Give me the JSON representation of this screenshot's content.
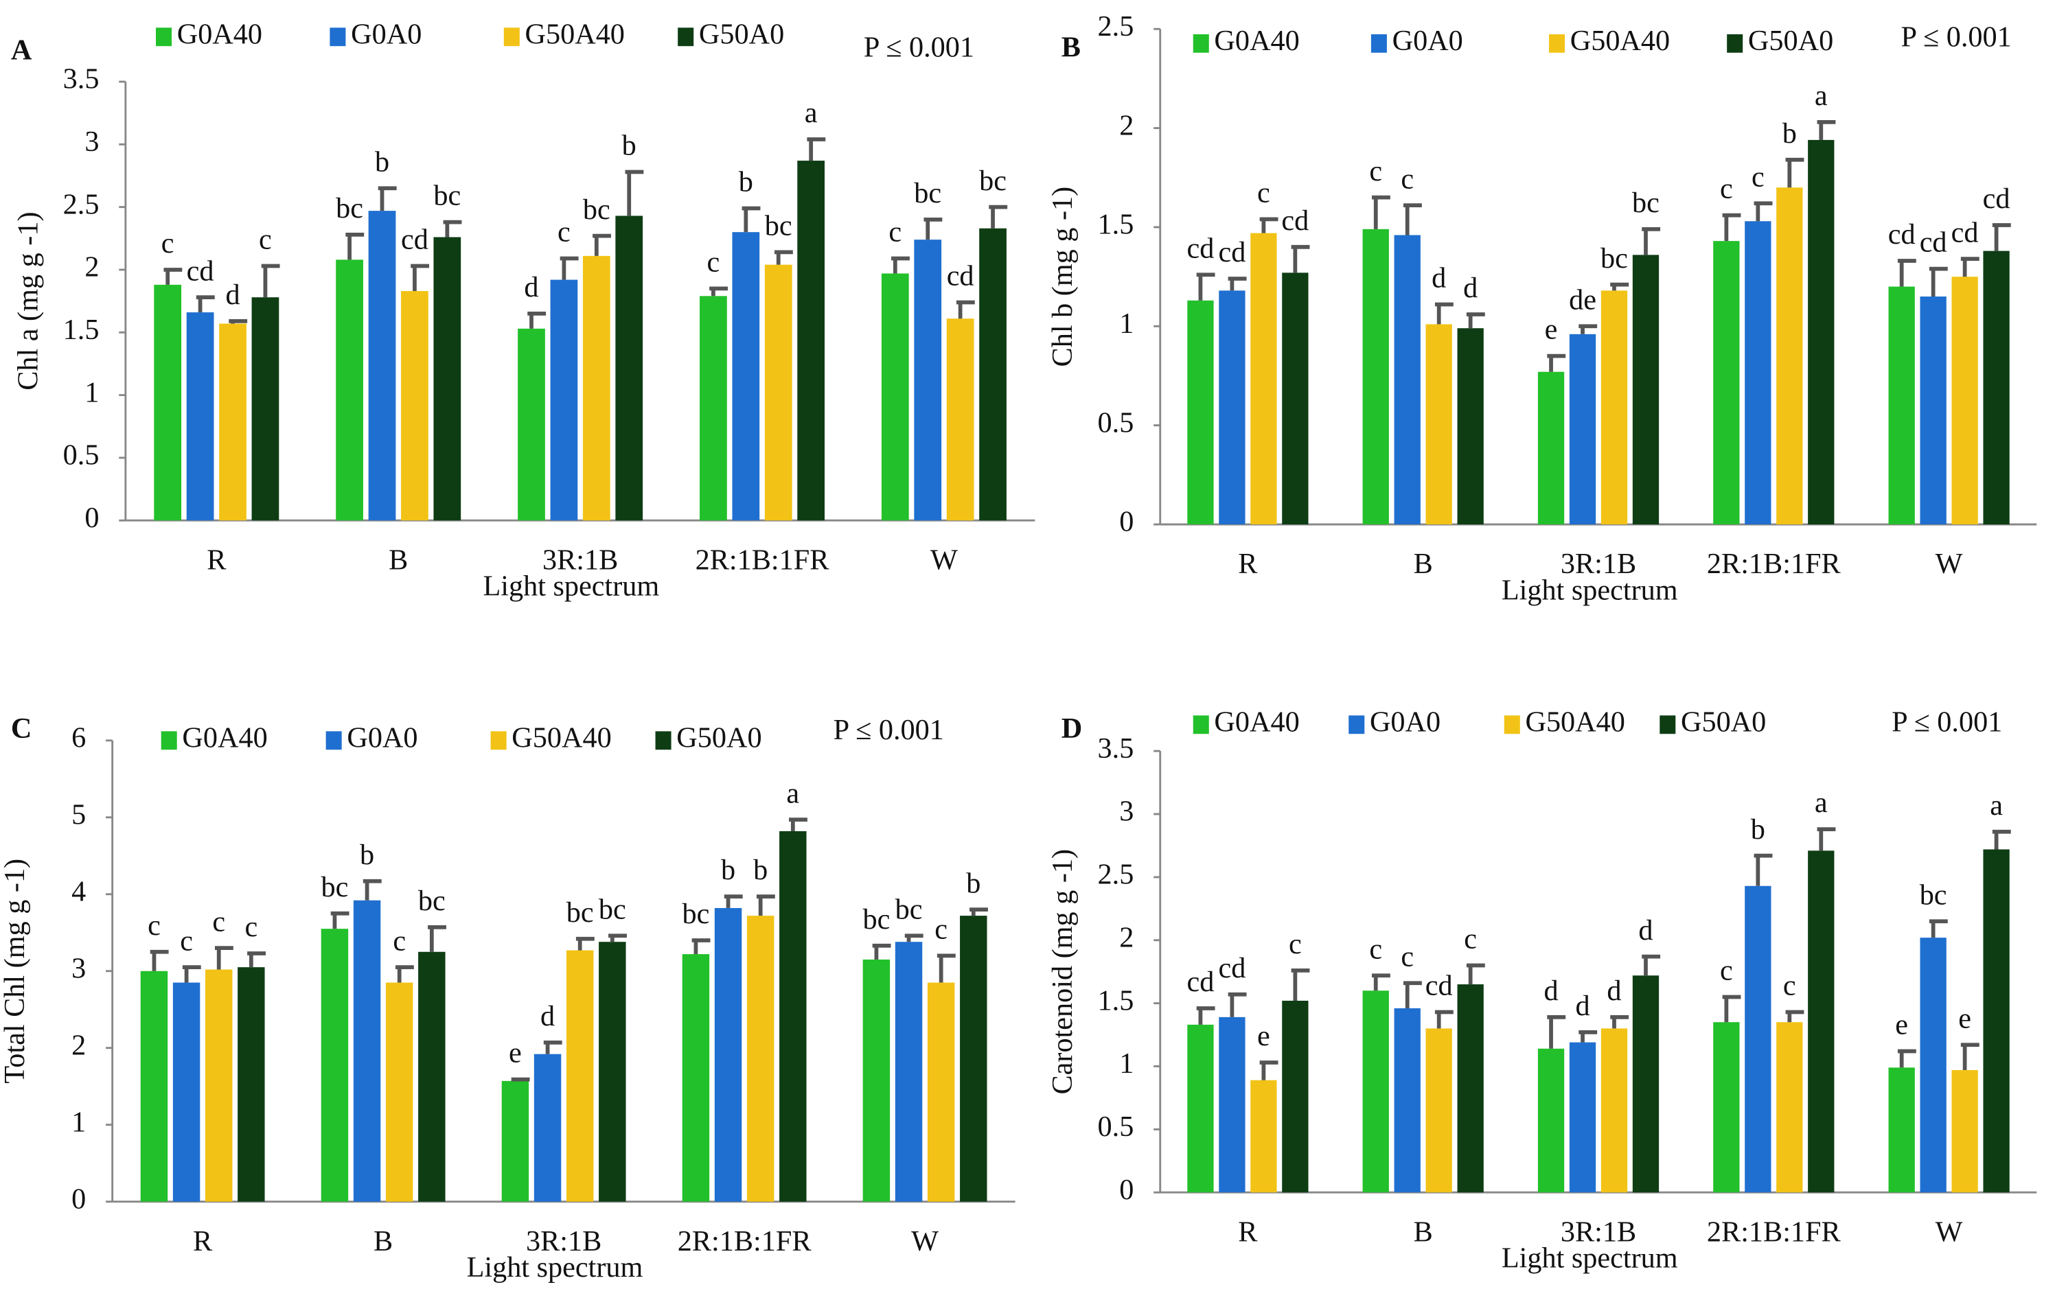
{
  "chart_data": [
    {
      "type": "bar",
      "panel": "A",
      "ylabel": "Chl a (mg g -1)",
      "xlabel": "Light spectrum",
      "note": "P ≤ 0.001",
      "categories": [
        "R",
        "B",
        "3R:1B",
        "2R:1B:1FR",
        "W"
      ],
      "ylim": [
        0,
        3.5
      ],
      "yticks": [
        0,
        0.5,
        1,
        1.5,
        2,
        2.5,
        3,
        3.5
      ],
      "series": [
        {
          "name": "G0A40",
          "color": "#22c02a",
          "values": [
            1.88,
            2.08,
            1.53,
            1.79,
            1.97
          ],
          "errors": [
            0.12,
            0.2,
            0.12,
            0.06,
            0.12
          ],
          "letters": [
            "c",
            "bc",
            "d",
            "c",
            "c"
          ]
        },
        {
          "name": "G0A0",
          "color": "#1f6fd0",
          "values": [
            1.66,
            2.47,
            1.92,
            2.3,
            2.24
          ],
          "errors": [
            0.12,
            0.18,
            0.17,
            0.19,
            0.16
          ],
          "letters": [
            "cd",
            "b",
            "c",
            "b",
            "bc"
          ]
        },
        {
          "name": "G50A40",
          "color": "#f2c316",
          "values": [
            1.57,
            1.83,
            2.11,
            2.04,
            1.61
          ],
          "errors": [
            0.02,
            0.2,
            0.16,
            0.1,
            0.13
          ],
          "letters": [
            "d",
            "cd",
            "bc",
            "bc",
            "cd"
          ]
        },
        {
          "name": "G50A0",
          "color": "#0e3d14",
          "values": [
            1.78,
            2.26,
            2.43,
            2.87,
            2.33
          ],
          "errors": [
            0.25,
            0.12,
            0.35,
            0.17,
            0.17
          ],
          "letters": [
            "c",
            "bc",
            "b",
            "a",
            "bc"
          ]
        }
      ]
    },
    {
      "type": "bar",
      "panel": "B",
      "ylabel": "Chl b (mg g -1)",
      "xlabel": "Light spectrum",
      "note": "P ≤ 0.001",
      "categories": [
        "R",
        "B",
        "3R:1B",
        "2R:1B:1FR",
        "W"
      ],
      "ylim": [
        0,
        2.5
      ],
      "yticks": [
        0,
        0.5,
        1,
        1.5,
        2,
        2.5
      ],
      "series": [
        {
          "name": "G0A40",
          "color": "#22c02a",
          "values": [
            1.13,
            1.49,
            0.77,
            1.43,
            1.2
          ],
          "errors": [
            0.13,
            0.16,
            0.08,
            0.13,
            0.13
          ],
          "letters": [
            "cd",
            "c",
            "e",
            "c",
            "cd"
          ]
        },
        {
          "name": "G0A0",
          "color": "#1f6fd0",
          "values": [
            1.18,
            1.46,
            0.96,
            1.53,
            1.15
          ],
          "errors": [
            0.06,
            0.15,
            0.04,
            0.09,
            0.14
          ],
          "letters": [
            "cd",
            "c",
            "de",
            "c",
            "cd"
          ]
        },
        {
          "name": "G50A40",
          "color": "#f2c316",
          "values": [
            1.47,
            1.01,
            1.18,
            1.7,
            1.25
          ],
          "errors": [
            0.07,
            0.1,
            0.03,
            0.14,
            0.09
          ],
          "letters": [
            "c",
            "d",
            "bc",
            "b",
            "cd"
          ]
        },
        {
          "name": "G50A0",
          "color": "#0e3d14",
          "values": [
            1.27,
            0.99,
            1.36,
            1.94,
            1.38
          ],
          "errors": [
            0.13,
            0.07,
            0.13,
            0.09,
            0.13
          ],
          "letters": [
            "cd",
            "d",
            "bc",
            "a",
            "cd"
          ]
        }
      ]
    },
    {
      "type": "bar",
      "panel": "C",
      "ylabel": "Total Chl (mg g -1)",
      "xlabel": "Light spectrum",
      "note": "P ≤ 0.001",
      "categories": [
        "R",
        "B",
        "3R:1B",
        "2R:1B:1FR",
        "W"
      ],
      "ylim": [
        0,
        6
      ],
      "yticks": [
        0,
        1,
        2,
        3,
        4,
        5,
        6
      ],
      "series": [
        {
          "name": "G0A40",
          "color": "#22c02a",
          "values": [
            3.0,
            3.55,
            1.57,
            3.22,
            3.15
          ],
          "errors": [
            0.25,
            0.2,
            0.02,
            0.18,
            0.18
          ],
          "letters": [
            "c",
            "bc",
            "e",
            "bc",
            "bc"
          ]
        },
        {
          "name": "G0A0",
          "color": "#1f6fd0",
          "values": [
            2.85,
            3.92,
            1.92,
            3.82,
            3.38
          ],
          "errors": [
            0.2,
            0.25,
            0.15,
            0.15,
            0.08
          ],
          "letters": [
            "c",
            "b",
            "d",
            "b",
            "bc"
          ]
        },
        {
          "name": "G50A40",
          "color": "#f2c316",
          "values": [
            3.02,
            2.85,
            3.27,
            3.72,
            2.85
          ],
          "errors": [
            0.28,
            0.2,
            0.15,
            0.25,
            0.35
          ],
          "letters": [
            "c",
            "c",
            "bc",
            "b",
            "c"
          ]
        },
        {
          "name": "G50A0",
          "color": "#0e3d14",
          "values": [
            3.05,
            3.25,
            3.38,
            4.82,
            3.72
          ],
          "errors": [
            0.18,
            0.32,
            0.08,
            0.15,
            0.08
          ],
          "letters": [
            "c",
            "bc",
            "bc",
            "a",
            "b"
          ]
        }
      ]
    },
    {
      "type": "bar",
      "panel": "D",
      "ylabel": "Carotenoid (mg g -1)",
      "xlabel": "Light spectrum",
      "note": "P ≤ 0.001",
      "categories": [
        "R",
        "B",
        "3R:1B",
        "2R:1B:1FR",
        "W"
      ],
      "ylim": [
        0,
        3.5
      ],
      "yticks": [
        0,
        0.5,
        1,
        1.5,
        2,
        2.5,
        3,
        3.5
      ],
      "series": [
        {
          "name": "G0A40",
          "color": "#22c02a",
          "values": [
            1.33,
            1.6,
            1.14,
            1.35,
            0.99
          ],
          "errors": [
            0.13,
            0.12,
            0.25,
            0.2,
            0.13
          ],
          "letters": [
            "cd",
            "c",
            "d",
            "c",
            "e"
          ]
        },
        {
          "name": "G0A0",
          "color": "#1f6fd0",
          "values": [
            1.39,
            1.46,
            1.19,
            2.43,
            2.02
          ],
          "errors": [
            0.18,
            0.2,
            0.08,
            0.24,
            0.13
          ],
          "letters": [
            "cd",
            "c",
            "d",
            "b",
            "bc"
          ]
        },
        {
          "name": "G50A40",
          "color": "#f2c316",
          "values": [
            0.89,
            1.3,
            1.3,
            1.35,
            0.97
          ],
          "errors": [
            0.14,
            0.13,
            0.09,
            0.08,
            0.2
          ],
          "letters": [
            "e",
            "cd",
            "d",
            "c",
            "e"
          ]
        },
        {
          "name": "G50A0",
          "color": "#0e3d14",
          "values": [
            1.52,
            1.65,
            1.72,
            2.71,
            2.72
          ],
          "errors": [
            0.24,
            0.15,
            0.15,
            0.17,
            0.14
          ],
          "letters": [
            "c",
            "c",
            "d",
            "a",
            "a"
          ]
        }
      ]
    }
  ]
}
